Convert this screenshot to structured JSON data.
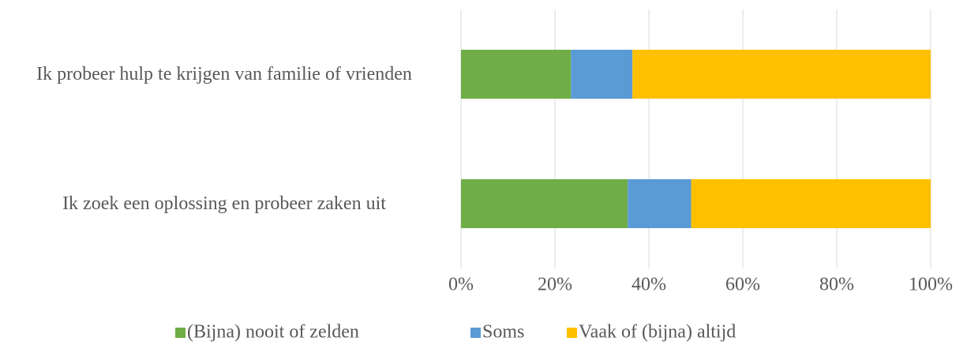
{
  "chart_data": {
    "type": "stacked_bar_horizontal",
    "categories": [
      "Ik probeer hulp te krijgen van familie of vrienden",
      "Ik zoek een oplossing en probeer zaken uit"
    ],
    "series": [
      {
        "name": "(Bijna) nooit of zelden",
        "color": "#70ad47",
        "values": [
          23.4,
          35.5
        ]
      },
      {
        "name": "Soms",
        "color": "#5b9bd5",
        "values": [
          13.1,
          13.5
        ]
      },
      {
        "name": "Vaak of (bijna) altijd",
        "color": "#ffc000",
        "values": [
          63.5,
          51
        ]
      }
    ],
    "xlim": [
      0,
      100
    ],
    "xticks": [
      {
        "value": 0,
        "label": "0%"
      },
      {
        "value": 20,
        "label": "20%"
      },
      {
        "value": 40,
        "label": "40%"
      },
      {
        "value": 60,
        "label": "60%"
      },
      {
        "value": 80,
        "label": "80%"
      },
      {
        "value": 100,
        "label": "100%"
      }
    ],
    "grid": true,
    "legend": "bottom"
  }
}
